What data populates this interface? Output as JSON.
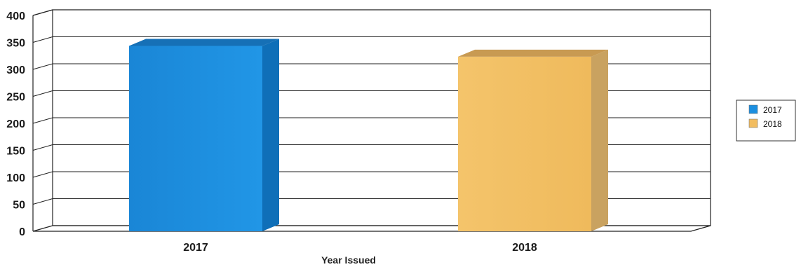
{
  "chart_data": {
    "type": "bar",
    "style": "3d",
    "categories": [
      "2017",
      "2018"
    ],
    "values": [
      350,
      330
    ],
    "xlabel": "Year Issued",
    "ylabel": "",
    "ylim": [
      0,
      400
    ],
    "yticks": [
      "0",
      "50",
      "100",
      "150",
      "200",
      "250",
      "300",
      "350",
      "400"
    ],
    "grid": true,
    "legend": {
      "placement": "right",
      "entries": [
        "2017",
        "2018"
      ]
    },
    "colors": {
      "2017": "#1c8fe0",
      "2018": "#f2bd60"
    }
  }
}
